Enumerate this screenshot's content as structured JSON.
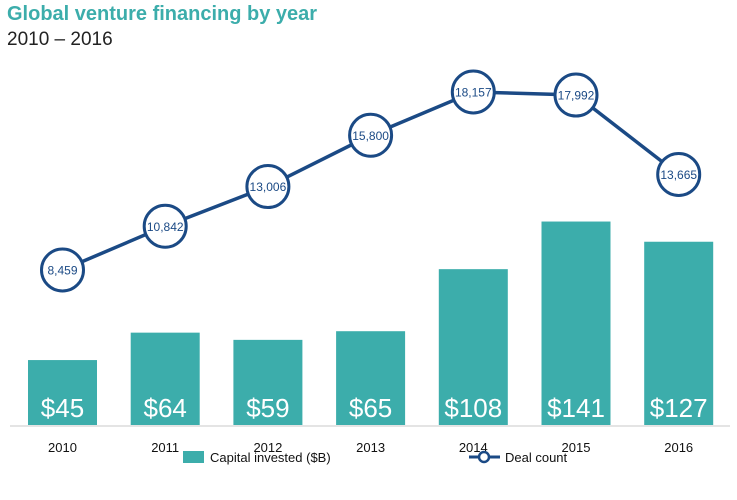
{
  "chart_data": {
    "type": "bar+line",
    "title": "Global venture financing by year",
    "subtitle": "2010 – 2016",
    "categories": [
      "2010",
      "2011",
      "2012",
      "2013",
      "2014",
      "2015",
      "2016"
    ],
    "series": [
      {
        "name": "Capital invested ($B)",
        "type": "bar",
        "values": [
          45,
          64,
          59,
          65,
          108,
          141,
          127
        ],
        "labels": [
          "$45",
          "$64",
          "$59",
          "$65",
          "$108",
          "$141",
          "$127"
        ],
        "color": "#3cadab"
      },
      {
        "name": "Deal count",
        "type": "line",
        "values": [
          8459,
          10842,
          13006,
          15800,
          18157,
          17992,
          13665
        ],
        "labels": [
          "8,459",
          "10,842",
          "13,006",
          "15,800",
          "18,157",
          "17,992",
          "13,665"
        ],
        "color": "#1b4a85"
      }
    ],
    "bar_ylim": [
      0,
      160
    ],
    "line_ylim": [
      0,
      20000
    ],
    "xlabel": "",
    "ylabel": "",
    "grid": false,
    "legend_position": "bottom"
  }
}
